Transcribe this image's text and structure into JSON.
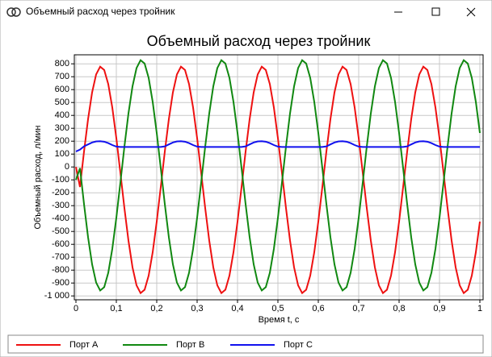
{
  "window": {
    "title": "Объемный расход через тройник"
  },
  "chart_data": {
    "type": "line",
    "title": "Объемный расход через тройник",
    "x_label": "Время t, с",
    "y_label": "Объемный расход, л/мин",
    "grid": true,
    "legend": "bottom",
    "xlim": [
      -0.004,
      1.008
    ],
    "ylim": [
      -1030,
      870
    ],
    "xticks": [
      0,
      {
        "value": 0.1,
        "label": "0,1"
      },
      {
        "value": 0.2,
        "label": "0,2"
      },
      {
        "value": 0.3,
        "label": "0,3"
      },
      {
        "value": 0.4,
        "label": "0,4"
      },
      {
        "value": 0.5,
        "label": "0,5"
      },
      {
        "value": 0.6,
        "label": "0,6"
      },
      {
        "value": 0.7,
        "label": "0,7"
      },
      {
        "value": 0.8,
        "label": "0,8"
      },
      {
        "value": 0.9,
        "label": "0,9"
      },
      1
    ],
    "yticks": [
      {
        "value": -1000,
        "label": "-1 000"
      },
      -900,
      -800,
      -700,
      -600,
      -500,
      -400,
      -300,
      -200,
      -100,
      0,
      100,
      200,
      300,
      400,
      500,
      600,
      700,
      800
    ],
    "x": [
      0,
      0.01,
      0.02,
      0.03,
      0.04,
      0.05,
      0.06,
      0.07,
      0.08,
      0.09,
      0.1,
      0.11,
      0.12,
      0.13,
      0.14,
      0.15,
      0.16,
      0.17,
      0.18,
      0.19,
      0.2,
      0.21,
      0.22,
      0.23,
      0.24,
      0.25,
      0.26,
      0.27,
      0.28,
      0.29,
      0.3,
      0.31,
      0.32,
      0.33,
      0.34,
      0.35,
      0.36,
      0.37,
      0.38,
      0.39,
      0.4,
      0.41,
      0.42,
      0.43,
      0.44,
      0.45,
      0.46,
      0.47,
      0.48,
      0.49,
      0.5,
      0.51,
      0.52,
      0.53,
      0.54,
      0.55,
      0.56,
      0.57,
      0.58,
      0.59,
      0.6,
      0.61,
      0.62,
      0.63,
      0.64,
      0.65,
      0.66,
      0.67,
      0.68,
      0.69,
      0.7,
      0.71,
      0.72,
      0.73,
      0.74,
      0.75,
      0.76,
      0.77,
      0.78,
      0.79,
      0.8,
      0.81,
      0.82,
      0.83,
      0.84,
      0.85,
      0.86,
      0.87,
      0.88,
      0.89,
      0.9,
      0.91,
      0.92,
      0.93,
      0.94,
      0.95,
      0.96,
      0.97,
      0.98,
      0.99,
      1
    ],
    "series": [
      {
        "name": "Порт A",
        "color": "#ee1111",
        "values": [
          0,
          -155,
          119,
          371,
          578,
          718,
          778,
          752,
          643,
          461,
          224,
          -45,
          -319,
          -571,
          -778,
          -918,
          -978,
          -952,
          -843,
          -661,
          -424,
          -155,
          119,
          371,
          578,
          718,
          778,
          752,
          643,
          461,
          224,
          -45,
          -319,
          -571,
          -778,
          -918,
          -978,
          -952,
          -843,
          -661,
          -424,
          -155,
          119,
          371,
          578,
          718,
          778,
          752,
          643,
          461,
          224,
          -45,
          -319,
          -571,
          -778,
          -918,
          -978,
          -952,
          -843,
          -661,
          -424,
          -155,
          119,
          371,
          578,
          718,
          778,
          752,
          643,
          461,
          224,
          -45,
          -319,
          -571,
          -778,
          -918,
          -978,
          -952,
          -843,
          -661,
          -424,
          -155,
          119,
          371,
          578,
          718,
          778,
          752,
          643,
          461,
          224,
          -45,
          -319,
          -571,
          -778,
          -918,
          -978,
          -952,
          -843,
          -661,
          -424
        ]
      },
      {
        "name": "Порт B",
        "color": "#118811",
        "values": [
          -100,
          -9,
          -288,
          -545,
          -755,
          -897,
          -958,
          -932,
          -821,
          -635,
          -394,
          -121,
          158,
          415,
          625,
          767,
          828,
          802,
          691,
          505,
          264,
          -9,
          -288,
          -545,
          -755,
          -897,
          -958,
          -932,
          -821,
          -635,
          -394,
          -121,
          158,
          415,
          625,
          767,
          828,
          802,
          691,
          505,
          264,
          -9,
          -288,
          -545,
          -755,
          -897,
          -958,
          -932,
          -821,
          -635,
          -394,
          -121,
          158,
          415,
          625,
          767,
          828,
          802,
          691,
          505,
          264,
          -9,
          -288,
          -545,
          -755,
          -897,
          -958,
          -932,
          -821,
          -635,
          -394,
          -121,
          158,
          415,
          625,
          767,
          828,
          802,
          691,
          505,
          264,
          -9,
          -288,
          -545,
          -755,
          -897,
          -958,
          -932,
          -821,
          -635,
          -394,
          -121,
          158,
          415,
          625,
          767,
          828,
          802,
          691,
          505,
          264
        ]
      },
      {
        "name": "Порт C",
        "color": "#1111ee",
        "values": [
          120,
          135,
          160,
          175,
          190,
          198,
          200,
          196,
          185,
          170,
          158,
          155,
          155,
          155,
          155,
          155,
          155,
          155,
          155,
          155,
          155,
          155,
          160,
          175,
          190,
          198,
          200,
          196,
          185,
          170,
          158,
          155,
          155,
          155,
          155,
          155,
          155,
          155,
          155,
          155,
          155,
          155,
          160,
          175,
          190,
          198,
          200,
          196,
          185,
          170,
          158,
          155,
          155,
          155,
          155,
          155,
          155,
          155,
          155,
          155,
          155,
          155,
          160,
          175,
          190,
          198,
          200,
          196,
          185,
          170,
          158,
          155,
          155,
          155,
          155,
          155,
          155,
          155,
          155,
          155,
          155,
          155,
          160,
          175,
          190,
          198,
          200,
          196,
          185,
          170,
          158,
          155,
          155,
          155,
          155,
          155,
          155,
          155,
          155,
          155,
          155
        ]
      }
    ]
  }
}
